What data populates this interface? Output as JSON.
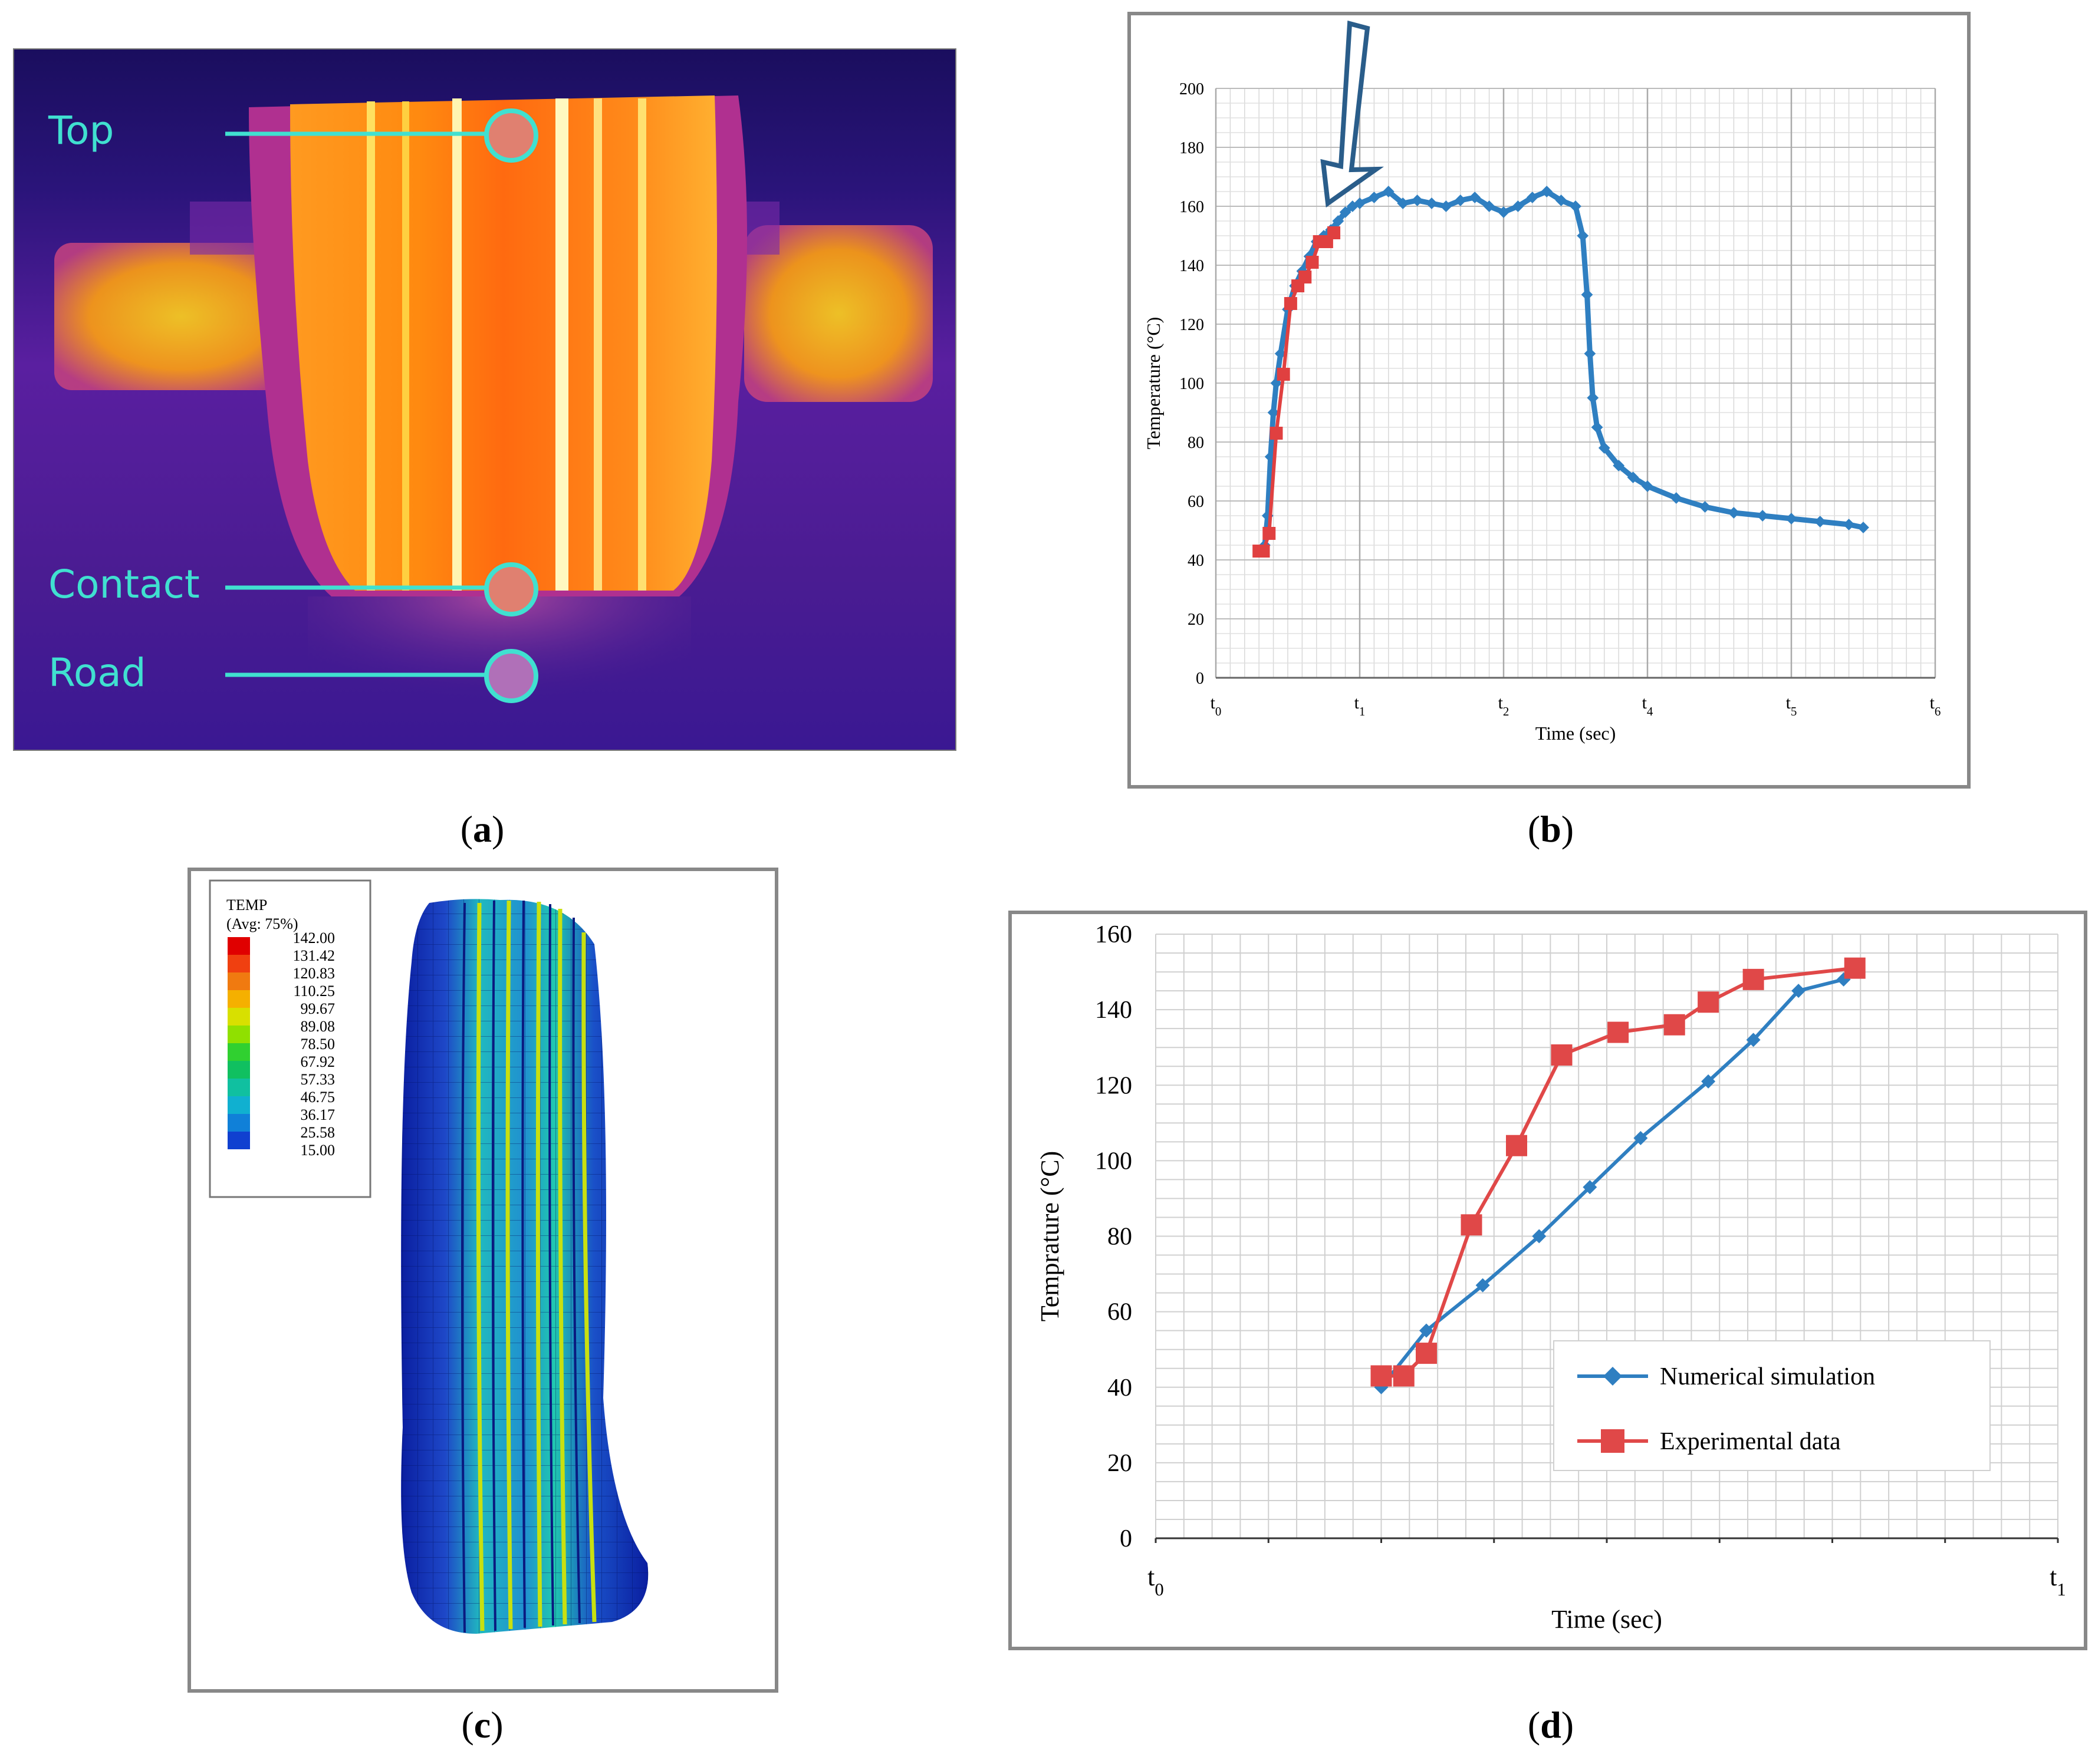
{
  "panel_a": {
    "labels": [
      "Top",
      "Contact",
      "Road"
    ],
    "caption_letter": "a"
  },
  "panel_b": {
    "caption_letter": "b"
  },
  "panel_c": {
    "caption_letter": "c",
    "legend_title": "TEMP",
    "legend_subtitle": "(Avg: 75%)",
    "legend_values": [
      "142.00",
      "131.42",
      "120.83",
      "110.25",
      "99.67",
      "89.08",
      "78.50",
      "67.92",
      "57.33",
      "46.75",
      "36.17",
      "25.58",
      "15.00"
    ],
    "legend_colors": [
      "#e00000",
      "#f04010",
      "#f07a10",
      "#f5b000",
      "#d8e000",
      "#90e000",
      "#30d030",
      "#10c060",
      "#10c0a0",
      "#10b0d0",
      "#1080d8",
      "#1040d0",
      "#0010c0"
    ]
  },
  "panel_d": {
    "caption_letter": "d"
  },
  "chart_data": [
    {
      "type": "line",
      "title": "",
      "xlabel": "Time (sec)",
      "ylabel": "Temperature (°C)",
      "ylim": [
        0,
        200
      ],
      "yticks": [
        0,
        20,
        40,
        60,
        80,
        100,
        120,
        140,
        160,
        180,
        200
      ],
      "xticks": [
        "t0",
        "t1",
        "t2",
        "t4",
        "t5",
        "t6"
      ],
      "xlim": [
        0,
        5
      ],
      "grid": true,
      "series": [
        {
          "color": "#2f7fc1",
          "x": [
            0.3,
            0.34,
            0.36,
            0.38,
            0.4,
            0.42,
            0.45,
            0.5,
            0.55,
            0.6,
            0.65,
            0.7,
            0.75,
            0.8,
            0.85,
            0.9,
            0.95,
            1.0,
            1.1,
            1.2,
            1.3,
            1.4,
            1.5,
            1.6,
            1.7,
            1.8,
            1.9,
            2.0,
            2.1,
            2.2,
            2.3,
            2.4,
            2.5,
            2.55,
            2.58,
            2.6,
            2.62,
            2.65,
            2.7,
            2.8,
            2.9,
            3.0,
            3.2,
            3.4,
            3.6,
            3.8,
            4.0,
            4.2,
            4.4,
            4.5
          ],
          "y": [
            43,
            45,
            55,
            75,
            90,
            100,
            110,
            125,
            133,
            138,
            143,
            148,
            150,
            152,
            155,
            158,
            160,
            161,
            163,
            165,
            161,
            162,
            161,
            160,
            162,
            163,
            160,
            158,
            160,
            163,
            165,
            162,
            160,
            150,
            130,
            110,
            95,
            85,
            78,
            72,
            68,
            65,
            61,
            58,
            56,
            55,
            54,
            53,
            52,
            51
          ]
        },
        {
          "color": "#e04040",
          "x": [
            0.3,
            0.33,
            0.37,
            0.42,
            0.47,
            0.52,
            0.57,
            0.62,
            0.67,
            0.72,
            0.77,
            0.82
          ],
          "y": [
            43,
            43,
            49,
            83,
            103,
            127,
            133,
            136,
            141,
            148,
            148,
            151
          ]
        }
      ],
      "annotation": "arrow"
    },
    {
      "type": "line",
      "title": "",
      "xlabel": "Time (sec)",
      "ylabel": "Temprature (°C)",
      "ylim": [
        0,
        160
      ],
      "yticks": [
        0,
        20,
        40,
        60,
        80,
        100,
        120,
        140,
        160
      ],
      "xlim": [
        0,
        8
      ],
      "xticks": [
        "t0",
        "t1"
      ],
      "grid": true,
      "legend_placement": "bottom-right",
      "series": [
        {
          "name": "Numerical simulation",
          "color": "#2f7fc1",
          "marker": "diamond",
          "x": [
            2.0,
            2.4,
            2.9,
            3.4,
            3.85,
            4.3,
            4.9,
            5.3,
            5.7,
            6.1
          ],
          "y": [
            40,
            55,
            67,
            80,
            93,
            106,
            121,
            132,
            145,
            148
          ]
        },
        {
          "name": "Experimental data",
          "color": "#e04848",
          "marker": "square",
          "x": [
            2.0,
            2.2,
            2.4,
            2.8,
            3.2,
            3.6,
            4.1,
            4.6,
            4.9,
            5.3,
            6.2
          ],
          "y": [
            43,
            43,
            49,
            83,
            104,
            128,
            134,
            136,
            142,
            148,
            151
          ]
        }
      ]
    }
  ]
}
